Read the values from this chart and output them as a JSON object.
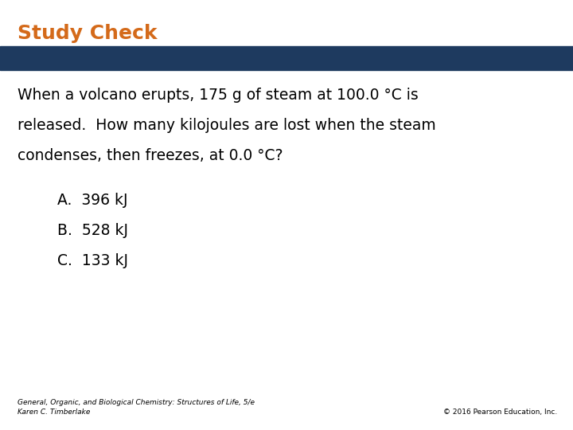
{
  "title": "Study Check",
  "title_color": "#D46A1A",
  "title_fontsize": 18,
  "banner_color": "#1E3A5F",
  "question_line1": "When a volcano erupts, 175 g of steam at 100.0 °C is",
  "question_line2": "released.  How many kilojoules are lost when the steam",
  "question_line3": "condenses, then freezes, at 0.0 °C?",
  "options": [
    "A.  396 kJ",
    "B.  528 kJ",
    "C.  133 kJ"
  ],
  "footer_left": "General, Organic, and Biological Chemistry: Structures of Life, 5/e\nKaren C. Timberlake",
  "footer_right": "© 2016 Pearson Education, Inc.",
  "footer_fontsize": 6.5,
  "bg_color": "#FFFFFF",
  "text_color": "#000000",
  "question_fontsize": 13.5,
  "option_fontsize": 13.5,
  "option_indent": 0.1
}
